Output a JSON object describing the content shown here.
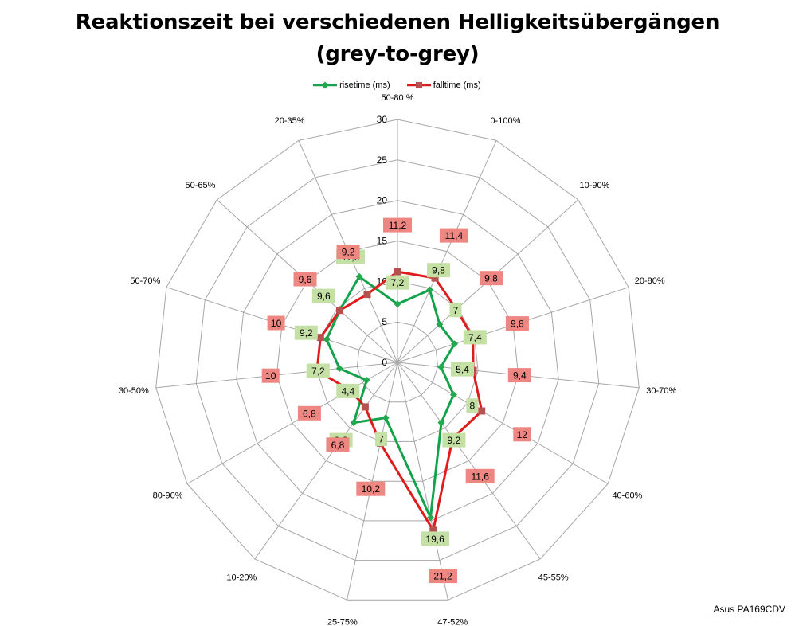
{
  "title_line1": "Reaktionszeit bei verschiedenen Helligkeitsübergängen",
  "title_line2": "(grey-to-grey)",
  "credit": "Asus PA169CDV",
  "colors": {
    "risetime": "#14a34a",
    "falltime": "#e01b1b",
    "risetime_marker": "#22a84f",
    "falltime_marker": "#b5514f",
    "risetime_label_bg": "#c5e0a5",
    "falltime_label_bg": "#ee8682",
    "grid": "#a6a6a6"
  },
  "chart_data": {
    "type": "radar",
    "title": "Reaktionszeit bei verschiedenen Helligkeitsübergängen (grey-to-grey)",
    "categories": [
      "50-80 %",
      "0-100%",
      "10-90%",
      "20-80%",
      "30-70%",
      "40-60%",
      "45-55%",
      "47-52%",
      "25-75%",
      "10-20%",
      "80-90%",
      "30-50%",
      "50-70%",
      "50-65%",
      "20-35%"
    ],
    "series": [
      {
        "name": "risetime (ms)",
        "values": [
          7.2,
          9.8,
          7,
          7.4,
          5.4,
          8,
          9.2,
          19.6,
          7,
          9.2,
          4.4,
          7.2,
          9.2,
          9.6,
          11.6
        ]
      },
      {
        "name": "falltime (ms)",
        "values": [
          11.2,
          11.4,
          9.8,
          9.8,
          9.4,
          12,
          11.6,
          21.2,
          10.2,
          6.8,
          6.8,
          10,
          10,
          9.6,
          9.2
        ]
      }
    ],
    "value_labels": {
      "risetime (ms)": [
        "7,2",
        "9,8",
        "7",
        "7,4",
        "5,4",
        "8",
        "9,2",
        "19,6",
        "7",
        "9,2",
        "4,4",
        "7,2",
        "9,2",
        "9,6",
        "11,6"
      ],
      "falltime (ms)": [
        "11,2",
        "11,4",
        "9,8",
        "9,8",
        "9,4",
        "12",
        "11,6",
        "21,2",
        "10,2",
        "6,8",
        "6,8",
        "10",
        "10",
        "9,6",
        "9,2"
      ]
    },
    "axis_ticks": [
      0,
      5,
      10,
      15,
      20,
      25,
      30
    ],
    "range": [
      0,
      30
    ],
    "grid": true,
    "legend_position": "top"
  }
}
